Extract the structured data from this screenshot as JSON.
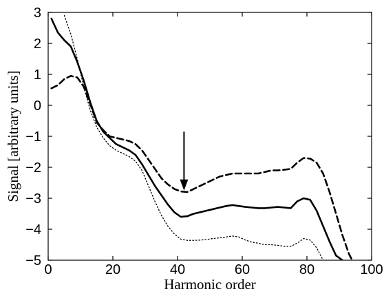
{
  "chart_data": {
    "type": "line",
    "title": "",
    "xlabel": "Harmonic order",
    "ylabel": "Signal [arbitrary units]",
    "xlim": [
      0,
      100
    ],
    "ylim": [
      -5,
      3
    ],
    "xticks": [
      0,
      20,
      40,
      60,
      80,
      100
    ],
    "yticks": [
      3,
      2,
      1,
      0,
      -1,
      -2,
      -3,
      -4,
      -5
    ],
    "xtick_labels": [
      "0",
      "20",
      "40",
      "60",
      "80",
      "100"
    ],
    "ytick_labels": [
      "3",
      "2",
      "1",
      "0",
      "−1",
      "−2",
      "−3",
      "−4",
      "−5"
    ],
    "grid": false,
    "legend": "none",
    "series": [
      {
        "style": "solid",
        "color": "#000000",
        "x": [
          1,
          3,
          5,
          7,
          9,
          11,
          13,
          15,
          17,
          19,
          21,
          23,
          25,
          27,
          29,
          31,
          33,
          35,
          37,
          39,
          41,
          43,
          45,
          47,
          49,
          51,
          53,
          55,
          57,
          59,
          61,
          63,
          65,
          67,
          69,
          71,
          73,
          75,
          77,
          79,
          81,
          83,
          85,
          87,
          89,
          91
        ],
        "y": [
          2.8,
          2.35,
          2.1,
          1.9,
          1.4,
          0.8,
          0.1,
          -0.5,
          -0.85,
          -1.05,
          -1.25,
          -1.35,
          -1.45,
          -1.6,
          -1.9,
          -2.25,
          -2.6,
          -2.9,
          -3.2,
          -3.45,
          -3.6,
          -3.58,
          -3.5,
          -3.45,
          -3.4,
          -3.35,
          -3.3,
          -3.25,
          -3.22,
          -3.25,
          -3.28,
          -3.3,
          -3.32,
          -3.32,
          -3.3,
          -3.28,
          -3.3,
          -3.32,
          -3.1,
          -3.0,
          -3.05,
          -3.4,
          -3.9,
          -4.4,
          -4.85,
          -5.0
        ]
      },
      {
        "style": "dashed",
        "color": "#000000",
        "x": [
          1,
          3,
          5,
          7,
          9,
          11,
          13,
          15,
          17,
          19,
          21,
          23,
          25,
          27,
          29,
          31,
          33,
          35,
          37,
          39,
          41,
          43,
          45,
          47,
          49,
          51,
          53,
          55,
          57,
          59,
          61,
          63,
          65,
          67,
          69,
          71,
          73,
          75,
          77,
          79,
          81,
          83,
          85,
          87,
          89,
          91,
          93,
          94
        ],
        "y": [
          0.55,
          0.65,
          0.85,
          0.95,
          0.9,
          0.6,
          0.05,
          -0.55,
          -0.8,
          -1.0,
          -1.05,
          -1.1,
          -1.15,
          -1.25,
          -1.45,
          -1.75,
          -2.05,
          -2.35,
          -2.55,
          -2.7,
          -2.78,
          -2.8,
          -2.7,
          -2.6,
          -2.5,
          -2.4,
          -2.3,
          -2.25,
          -2.2,
          -2.2,
          -2.2,
          -2.2,
          -2.2,
          -2.15,
          -2.1,
          -2.1,
          -2.08,
          -2.05,
          -1.85,
          -1.7,
          -1.72,
          -1.85,
          -2.2,
          -2.8,
          -3.5,
          -4.2,
          -4.8,
          -5.0
        ]
      },
      {
        "style": "dotted",
        "color": "#000000",
        "x": [
          5,
          7,
          9,
          11,
          13,
          15,
          17,
          19,
          21,
          23,
          25,
          27,
          29,
          31,
          33,
          35,
          37,
          39,
          41,
          43,
          45,
          47,
          49,
          51,
          53,
          55,
          57,
          59,
          61,
          63,
          65,
          67,
          69,
          71,
          73,
          75,
          77,
          79,
          81,
          83,
          85
        ],
        "y": [
          2.9,
          2.3,
          1.5,
          0.6,
          -0.15,
          -0.7,
          -1.05,
          -1.3,
          -1.45,
          -1.55,
          -1.65,
          -1.8,
          -2.1,
          -2.6,
          -3.1,
          -3.55,
          -3.9,
          -4.15,
          -4.32,
          -4.36,
          -4.36,
          -4.35,
          -4.33,
          -4.3,
          -4.28,
          -4.25,
          -4.22,
          -4.25,
          -4.35,
          -4.42,
          -4.45,
          -4.5,
          -4.5,
          -4.52,
          -4.55,
          -4.55,
          -4.45,
          -4.3,
          -4.35,
          -4.6,
          -5.0
        ]
      }
    ],
    "annotations": [
      {
        "type": "arrow",
        "from": [
          42,
          -0.85
        ],
        "to": [
          42,
          -2.75
        ]
      }
    ]
  }
}
